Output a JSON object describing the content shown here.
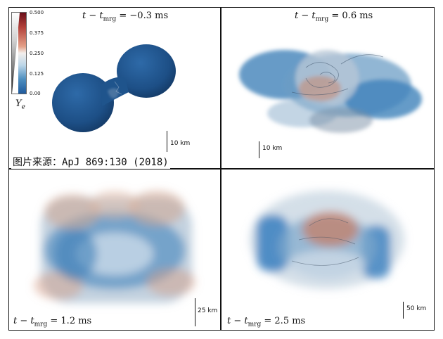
{
  "panels": [
    {
      "id": "p1",
      "time_label": {
        "var": "t",
        "sub_var": "t",
        "sub": "mrg",
        "value": "= −0.3 ms"
      },
      "scale_bar": "10 km"
    },
    {
      "id": "p2",
      "time_label": {
        "var": "t",
        "sub_var": "t",
        "sub": "mrg",
        "value": "= 0.6 ms"
      },
      "scale_bar": "10 km"
    },
    {
      "id": "p3",
      "time_label": {
        "var": "t",
        "sub_var": "t",
        "sub": "mrg",
        "value": "= 1.2 ms"
      },
      "scale_bar": "25 km"
    },
    {
      "id": "p4",
      "time_label": {
        "var": "t",
        "sub_var": "t",
        "sub": "mrg",
        "value": "= 2.5 ms"
      },
      "scale_bar": "50 km"
    }
  ],
  "colorbar": {
    "ticks": [
      "0.500",
      "0.375",
      "0.250",
      "0.125",
      "0.00"
    ],
    "label_var": "Y",
    "label_sub": "e"
  },
  "source": "图片来源：ApJ 869:130 (2018)",
  "colors": {
    "blue": "#2f6ea8",
    "red": "#c8664c",
    "frame": "#111111"
  }
}
